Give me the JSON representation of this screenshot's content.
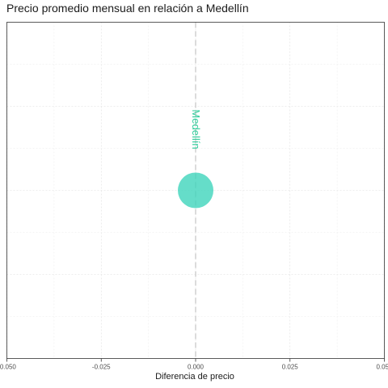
{
  "chart_data": {
    "type": "scatter",
    "title": "Precio promedio mensual en relación a Medellín",
    "xlabel": "Diferencia de precio",
    "ylabel": "",
    "xlim": [
      -0.05,
      0.05
    ],
    "x_ticks": [
      -0.05,
      -0.025,
      0.0,
      0.025,
      0.05
    ],
    "x_tick_labels": [
      "-0.050",
      "-0.025",
      "0.000",
      "0.025",
      "0.050"
    ],
    "grid": true,
    "reference_line": {
      "x": 0.0,
      "style": "dashed",
      "label": "Medellín"
    },
    "points": [
      {
        "x": 0.0,
        "label": "Medellín",
        "color": "#3fd4bb"
      }
    ],
    "colors": {
      "point": "#3fd4bb",
      "label": "#2ecc9a",
      "reference_line": "#c8c8c8"
    }
  }
}
